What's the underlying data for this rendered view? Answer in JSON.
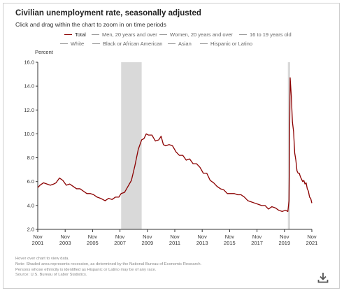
{
  "header": {
    "title": "Civilian unemployment rate, seasonally adjusted",
    "subtitle": "Click and drag within the chart to zoom in on time periods"
  },
  "legend": [
    {
      "label": "Total",
      "active": true
    },
    {
      "label": "Men, 20 years and over",
      "active": false
    },
    {
      "label": "Women, 20 years and over",
      "active": false
    },
    {
      "label": "16 to 19 years old",
      "active": false
    },
    {
      "label": "White",
      "active": false
    },
    {
      "label": "Black or African American",
      "active": false
    },
    {
      "label": "Asian",
      "active": false
    },
    {
      "label": "Hispanic or Latino",
      "active": false
    }
  ],
  "notes": [
    "Hover over chart to view data.",
    "Note: Shaded area represents recession, as determined by the National Bureau of Economic Research.",
    "Persons whose ethnicity is identified as Hispanic or Latino may be of any race.",
    "Source: U.S. Bureau of Labor Statistics."
  ],
  "colors": {
    "series": "#8b0000",
    "recession": "#d9d9d9",
    "axis": "#333333",
    "tick_text": "#333333"
  },
  "icons": {
    "download": "download-icon"
  },
  "chart_data": {
    "type": "line",
    "title": "Civilian unemployment rate, seasonally adjusted",
    "ylabel": "Percent",
    "xlabel": "",
    "ylim": [
      2.0,
      16.0
    ],
    "yticks": [
      2.0,
      4.0,
      6.0,
      8.0,
      10.0,
      12.0,
      14.0,
      16.0
    ],
    "xlim": [
      "2001-11",
      "2021-11"
    ],
    "xticks": [
      {
        "date": "2001-11",
        "label": [
          "Nov",
          "2001"
        ]
      },
      {
        "date": "2003-11",
        "label": [
          "Nov",
          "2003"
        ]
      },
      {
        "date": "2005-11",
        "label": [
          "Nov",
          "2005"
        ]
      },
      {
        "date": "2007-11",
        "label": [
          "Nov",
          "2007"
        ]
      },
      {
        "date": "2009-11",
        "label": [
          "Nov",
          "2009"
        ]
      },
      {
        "date": "2011-11",
        "label": [
          "Nov",
          "2011"
        ]
      },
      {
        "date": "2013-11",
        "label": [
          "Nov",
          "2013"
        ]
      },
      {
        "date": "2015-11",
        "label": [
          "Nov",
          "2015"
        ]
      },
      {
        "date": "2017-11",
        "label": [
          "Nov",
          "2017"
        ]
      },
      {
        "date": "2019-11",
        "label": [
          "Nov",
          "2019"
        ]
      },
      {
        "date": "2021-11",
        "label": [
          "Nov",
          "2021"
        ]
      }
    ],
    "recessions": [
      {
        "start": "2007-12",
        "end": "2009-06"
      },
      {
        "start": "2020-02",
        "end": "2020-04"
      }
    ],
    "grid": false,
    "series": [
      {
        "name": "Total",
        "points": [
          [
            "2001-11",
            5.5
          ],
          [
            "2002-01",
            5.7
          ],
          [
            "2002-04",
            5.9
          ],
          [
            "2002-07",
            5.8
          ],
          [
            "2002-10",
            5.7
          ],
          [
            "2003-01",
            5.8
          ],
          [
            "2003-03",
            5.9
          ],
          [
            "2003-06",
            6.3
          ],
          [
            "2003-09",
            6.1
          ],
          [
            "2003-12",
            5.7
          ],
          [
            "2004-03",
            5.8
          ],
          [
            "2004-06",
            5.6
          ],
          [
            "2004-09",
            5.4
          ],
          [
            "2004-12",
            5.4
          ],
          [
            "2005-03",
            5.2
          ],
          [
            "2005-06",
            5.0
          ],
          [
            "2005-09",
            5.0
          ],
          [
            "2005-12",
            4.9
          ],
          [
            "2006-03",
            4.7
          ],
          [
            "2006-06",
            4.6
          ],
          [
            "2006-10",
            4.4
          ],
          [
            "2007-01",
            4.6
          ],
          [
            "2007-04",
            4.5
          ],
          [
            "2007-07",
            4.7
          ],
          [
            "2007-10",
            4.7
          ],
          [
            "2007-12",
            5.0
          ],
          [
            "2008-03",
            5.1
          ],
          [
            "2008-06",
            5.6
          ],
          [
            "2008-09",
            6.1
          ],
          [
            "2008-12",
            7.3
          ],
          [
            "2009-03",
            8.7
          ],
          [
            "2009-06",
            9.5
          ],
          [
            "2009-08",
            9.6
          ],
          [
            "2009-10",
            10.0
          ],
          [
            "2009-12",
            9.9
          ],
          [
            "2010-03",
            9.9
          ],
          [
            "2010-06",
            9.4
          ],
          [
            "2010-09",
            9.5
          ],
          [
            "2010-11",
            9.8
          ],
          [
            "2011-01",
            9.1
          ],
          [
            "2011-03",
            9.0
          ],
          [
            "2011-06",
            9.1
          ],
          [
            "2011-09",
            9.0
          ],
          [
            "2011-12",
            8.5
          ],
          [
            "2012-03",
            8.2
          ],
          [
            "2012-06",
            8.2
          ],
          [
            "2012-09",
            7.8
          ],
          [
            "2012-12",
            7.9
          ],
          [
            "2013-03",
            7.5
          ],
          [
            "2013-06",
            7.5
          ],
          [
            "2013-09",
            7.2
          ],
          [
            "2013-12",
            6.7
          ],
          [
            "2014-03",
            6.7
          ],
          [
            "2014-06",
            6.1
          ],
          [
            "2014-09",
            5.9
          ],
          [
            "2014-12",
            5.6
          ],
          [
            "2015-03",
            5.4
          ],
          [
            "2015-06",
            5.3
          ],
          [
            "2015-09",
            5.0
          ],
          [
            "2015-12",
            5.0
          ],
          [
            "2016-03",
            5.0
          ],
          [
            "2016-06",
            4.9
          ],
          [
            "2016-09",
            4.9
          ],
          [
            "2016-12",
            4.7
          ],
          [
            "2017-03",
            4.4
          ],
          [
            "2017-06",
            4.3
          ],
          [
            "2017-09",
            4.2
          ],
          [
            "2017-12",
            4.1
          ],
          [
            "2018-03",
            4.0
          ],
          [
            "2018-06",
            4.0
          ],
          [
            "2018-09",
            3.7
          ],
          [
            "2018-12",
            3.9
          ],
          [
            "2019-03",
            3.8
          ],
          [
            "2019-06",
            3.6
          ],
          [
            "2019-09",
            3.5
          ],
          [
            "2019-12",
            3.6
          ],
          [
            "2020-02",
            3.5
          ],
          [
            "2020-03",
            4.4
          ],
          [
            "2020-04",
            14.7
          ],
          [
            "2020-05",
            13.2
          ],
          [
            "2020-06",
            11.0
          ],
          [
            "2020-07",
            10.2
          ],
          [
            "2020-08",
            8.4
          ],
          [
            "2020-09",
            7.8
          ],
          [
            "2020-10",
            6.9
          ],
          [
            "2020-11",
            6.7
          ],
          [
            "2020-12",
            6.7
          ],
          [
            "2021-01",
            6.4
          ],
          [
            "2021-02",
            6.2
          ],
          [
            "2021-03",
            6.0
          ],
          [
            "2021-04",
            6.1
          ],
          [
            "2021-05",
            5.8
          ],
          [
            "2021-06",
            5.9
          ],
          [
            "2021-07",
            5.4
          ],
          [
            "2021-08",
            5.2
          ],
          [
            "2021-09",
            4.7
          ],
          [
            "2021-10",
            4.6
          ],
          [
            "2021-11",
            4.2
          ]
        ]
      }
    ]
  }
}
